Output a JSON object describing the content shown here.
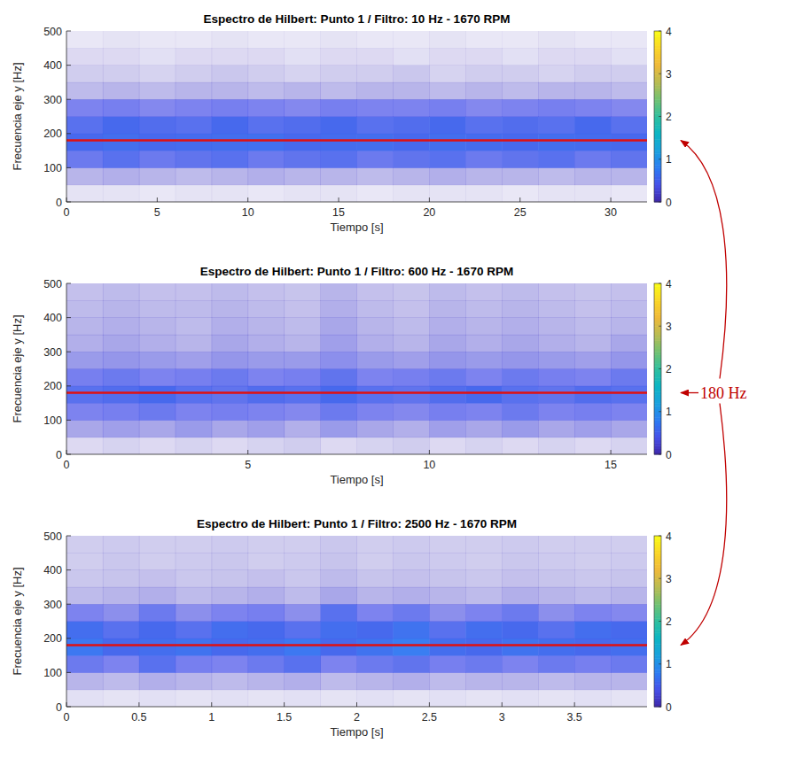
{
  "chart_data": [
    {
      "type": "heatmap",
      "title": "Espectro de Hilbert: Punto 1 / Filtro: 10 Hz - 1670 RPM",
      "x_label": "Tiempo [s]",
      "y_label": "Frecuencia eje y [Hz]",
      "xlim": [
        0,
        32
      ],
      "xticks": [
        0,
        5,
        10,
        15,
        20,
        25,
        30
      ],
      "ylim": [
        0,
        500
      ],
      "yticks": [
        0,
        100,
        200,
        300,
        400,
        500
      ],
      "x_edges": [
        0,
        2,
        4,
        6,
        8,
        10,
        12,
        14,
        16,
        18,
        20,
        22,
        24,
        26,
        28,
        30,
        32
      ],
      "y_edges": [
        0,
        50,
        100,
        150,
        200,
        250,
        300,
        350,
        400,
        450,
        500
      ],
      "cells": [
        [
          0.05,
          0.05,
          0.04,
          0.05,
          0.05,
          0.04,
          0.05,
          0.05,
          0.04,
          0.05,
          0.05,
          0.05,
          0.04,
          0.05,
          0.05,
          0.04
        ],
        [
          0.2,
          0.22,
          0.2,
          0.18,
          0.2,
          0.22,
          0.2,
          0.2,
          0.18,
          0.2,
          0.22,
          0.2,
          0.2,
          0.18,
          0.2,
          0.2
        ],
        [
          0.45,
          0.5,
          0.45,
          0.48,
          0.5,
          0.45,
          0.48,
          0.5,
          0.45,
          0.48,
          0.5,
          0.45,
          0.48,
          0.5,
          0.45,
          0.48
        ],
        [
          0.55,
          0.6,
          0.55,
          0.58,
          0.6,
          0.62,
          0.55,
          0.58,
          0.6,
          0.55,
          0.6,
          0.58,
          0.55,
          0.6,
          0.58,
          0.55
        ],
        [
          0.5,
          0.55,
          0.52,
          0.5,
          0.55,
          0.5,
          0.52,
          0.55,
          0.5,
          0.52,
          0.55,
          0.5,
          0.52,
          0.5,
          0.55,
          0.5
        ],
        [
          0.4,
          0.42,
          0.38,
          0.4,
          0.42,
          0.4,
          0.38,
          0.42,
          0.4,
          0.4,
          0.42,
          0.38,
          0.4,
          0.42,
          0.4,
          0.38
        ],
        [
          0.18,
          0.2,
          0.18,
          0.2,
          0.2,
          0.18,
          0.2,
          0.18,
          0.2,
          0.2,
          0.18,
          0.2,
          0.18,
          0.2,
          0.2,
          0.18
        ],
        [
          0.12,
          0.12,
          0.1,
          0.12,
          0.14,
          0.12,
          0.1,
          0.12,
          0.12,
          0.14,
          0.1,
          0.12,
          0.12,
          0.1,
          0.12,
          0.12
        ],
        [
          0.08,
          0.08,
          0.06,
          0.08,
          0.08,
          0.08,
          0.06,
          0.08,
          0.08,
          0.06,
          0.08,
          0.08,
          0.06,
          0.08,
          0.08,
          0.06
        ],
        [
          0.04,
          0.05,
          0.04,
          0.04,
          0.05,
          0.04,
          0.04,
          0.05,
          0.04,
          0.04,
          0.05,
          0.04,
          0.04,
          0.05,
          0.04,
          0.04
        ]
      ],
      "colorbar": {
        "range": [
          0,
          4
        ],
        "ticks": [
          0,
          1,
          2,
          3,
          4
        ]
      }
    },
    {
      "type": "heatmap",
      "title": "Espectro de Hilbert: Punto 1 / Filtro: 600 Hz - 1670 RPM",
      "x_label": "Tiempo [s]",
      "y_label": "Frecuencia eje y [Hz]",
      "xlim": [
        0,
        16
      ],
      "xticks": [
        0,
        5,
        10,
        15
      ],
      "ylim": [
        0,
        500
      ],
      "yticks": [
        0,
        100,
        200,
        300,
        400,
        500
      ],
      "x_edges": [
        0,
        1,
        2,
        3,
        4,
        5,
        6,
        7,
        8,
        9,
        10,
        11,
        12,
        13,
        14,
        15,
        16
      ],
      "y_edges": [
        0,
        50,
        100,
        150,
        200,
        250,
        300,
        350,
        400,
        450,
        500
      ],
      "cells": [
        [
          0.08,
          0.1,
          0.08,
          0.1,
          0.08,
          0.1,
          0.12,
          0.08,
          0.1,
          0.12,
          0.08,
          0.1,
          0.08,
          0.1,
          0.08,
          0.1
        ],
        [
          0.25,
          0.28,
          0.25,
          0.3,
          0.25,
          0.28,
          0.22,
          0.3,
          0.25,
          0.22,
          0.28,
          0.25,
          0.3,
          0.25,
          0.28,
          0.25
        ],
        [
          0.4,
          0.42,
          0.45,
          0.4,
          0.42,
          0.4,
          0.38,
          0.45,
          0.4,
          0.38,
          0.42,
          0.4,
          0.45,
          0.4,
          0.42,
          0.4
        ],
        [
          0.5,
          0.52,
          0.55,
          0.5,
          0.48,
          0.52,
          0.5,
          0.55,
          0.5,
          0.48,
          0.52,
          0.55,
          0.5,
          0.48,
          0.52,
          0.5
        ],
        [
          0.42,
          0.45,
          0.4,
          0.42,
          0.45,
          0.4,
          0.42,
          0.48,
          0.4,
          0.42,
          0.45,
          0.4,
          0.45,
          0.42,
          0.4,
          0.45
        ],
        [
          0.3,
          0.32,
          0.3,
          0.28,
          0.32,
          0.3,
          0.3,
          0.35,
          0.3,
          0.28,
          0.32,
          0.3,
          0.32,
          0.3,
          0.28,
          0.32
        ],
        [
          0.22,
          0.25,
          0.22,
          0.2,
          0.25,
          0.22,
          0.2,
          0.28,
          0.22,
          0.2,
          0.25,
          0.22,
          0.25,
          0.22,
          0.2,
          0.25
        ],
        [
          0.2,
          0.22,
          0.2,
          0.18,
          0.22,
          0.2,
          0.18,
          0.25,
          0.2,
          0.18,
          0.22,
          0.2,
          0.22,
          0.2,
          0.18,
          0.2
        ],
        [
          0.18,
          0.2,
          0.18,
          0.18,
          0.2,
          0.18,
          0.16,
          0.22,
          0.18,
          0.16,
          0.2,
          0.18,
          0.2,
          0.18,
          0.16,
          0.18
        ],
        [
          0.16,
          0.18,
          0.16,
          0.16,
          0.18,
          0.16,
          0.15,
          0.2,
          0.16,
          0.15,
          0.18,
          0.16,
          0.18,
          0.16,
          0.15,
          0.16
        ]
      ],
      "colorbar": {
        "range": [
          0,
          4
        ],
        "ticks": [
          0,
          1,
          2,
          3,
          4
        ]
      }
    },
    {
      "type": "heatmap",
      "title": "Espectro de Hilbert: Punto 1 / Filtro: 2500 Hz - 1670 RPM",
      "x_label": "Tiempo [s]",
      "y_label": "Frecuencia eje y [Hz]",
      "xlim": [
        0,
        4
      ],
      "xticks": [
        0,
        0.5,
        1,
        1.5,
        2,
        2.5,
        3,
        3.5
      ],
      "ylim": [
        0,
        500
      ],
      "yticks": [
        0,
        100,
        200,
        300,
        400,
        500
      ],
      "x_edges": [
        0,
        0.25,
        0.5,
        0.75,
        1,
        1.25,
        1.5,
        1.75,
        2,
        2.25,
        2.5,
        2.75,
        3,
        3.25,
        3.5,
        3.75,
        4
      ],
      "y_edges": [
        0,
        50,
        100,
        150,
        200,
        250,
        300,
        350,
        400,
        450,
        500
      ],
      "cells": [
        [
          0.06,
          0.05,
          0.06,
          0.05,
          0.06,
          0.05,
          0.06,
          0.05,
          0.06,
          0.05,
          0.06,
          0.05,
          0.06,
          0.05,
          0.06,
          0.05
        ],
        [
          0.2,
          0.18,
          0.22,
          0.2,
          0.18,
          0.2,
          0.22,
          0.18,
          0.2,
          0.22,
          0.18,
          0.2,
          0.2,
          0.18,
          0.2,
          0.2
        ],
        [
          0.45,
          0.4,
          0.5,
          0.42,
          0.4,
          0.45,
          0.5,
          0.4,
          0.45,
          0.48,
          0.42,
          0.45,
          0.4,
          0.45,
          0.42,
          0.45
        ],
        [
          0.7,
          0.55,
          0.6,
          0.65,
          0.55,
          0.6,
          0.7,
          0.55,
          0.65,
          0.75,
          0.6,
          0.55,
          0.65,
          0.6,
          0.55,
          0.6
        ],
        [
          0.6,
          0.5,
          0.55,
          0.5,
          0.6,
          0.55,
          0.5,
          0.6,
          0.55,
          0.65,
          0.5,
          0.6,
          0.55,
          0.5,
          0.6,
          0.55
        ],
        [
          0.4,
          0.35,
          0.45,
          0.35,
          0.4,
          0.42,
          0.35,
          0.5,
          0.4,
          0.45,
          0.35,
          0.4,
          0.45,
          0.35,
          0.4,
          0.38
        ],
        [
          0.18,
          0.2,
          0.22,
          0.18,
          0.2,
          0.22,
          0.18,
          0.25,
          0.2,
          0.22,
          0.2,
          0.18,
          0.22,
          0.2,
          0.18,
          0.2
        ],
        [
          0.14,
          0.15,
          0.16,
          0.14,
          0.15,
          0.16,
          0.14,
          0.18,
          0.15,
          0.16,
          0.15,
          0.14,
          0.16,
          0.15,
          0.14,
          0.15
        ],
        [
          0.12,
          0.14,
          0.12,
          0.13,
          0.14,
          0.12,
          0.13,
          0.15,
          0.12,
          0.14,
          0.13,
          0.12,
          0.14,
          0.13,
          0.12,
          0.13
        ],
        [
          0.12,
          0.13,
          0.12,
          0.12,
          0.13,
          0.12,
          0.12,
          0.14,
          0.12,
          0.13,
          0.12,
          0.12,
          0.13,
          0.12,
          0.12,
          0.12
        ]
      ],
      "colorbar": {
        "range": [
          0,
          4
        ],
        "ticks": [
          0,
          1,
          2,
          3,
          4
        ]
      }
    }
  ],
  "annotation": {
    "text": "180 Hz",
    "y": 180
  }
}
